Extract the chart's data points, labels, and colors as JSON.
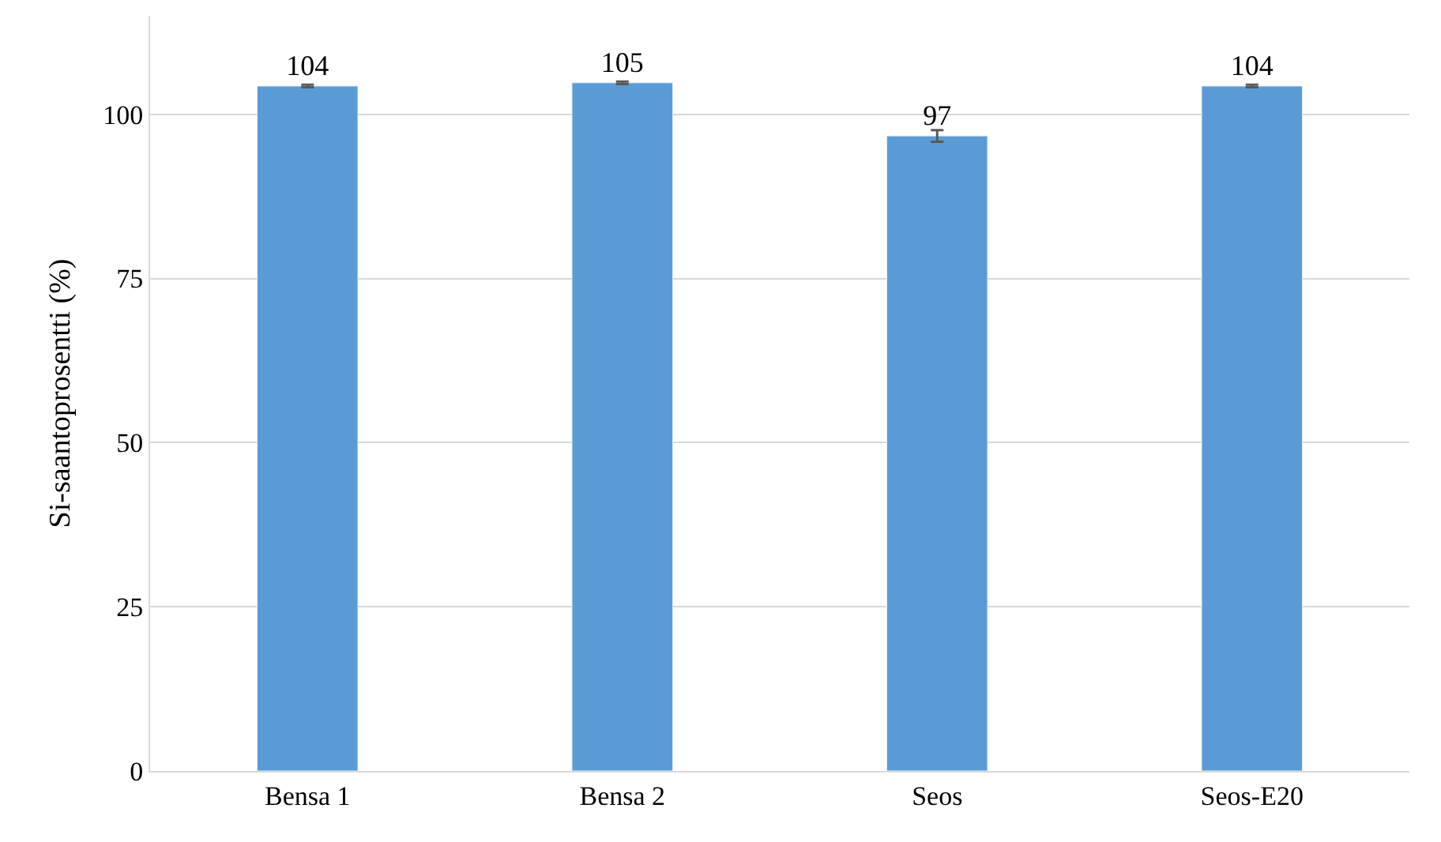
{
  "chart_data": {
    "type": "bar",
    "ylabel": "Si-saantoprosentti (%)",
    "categories": [
      "Bensa 1",
      "Bensa 2",
      "Seos",
      "Seos-E20"
    ],
    "values": [
      104.3,
      104.8,
      96.7,
      104.3
    ],
    "errors": [
      0.2,
      0.2,
      0.9,
      0.2
    ],
    "value_labels": [
      "104",
      "105",
      "97",
      "104"
    ],
    "color": "#5b9bd5",
    "ylim": [
      0,
      115
    ],
    "yticks": [
      0,
      25,
      50,
      75,
      100
    ],
    "grid": "y"
  }
}
